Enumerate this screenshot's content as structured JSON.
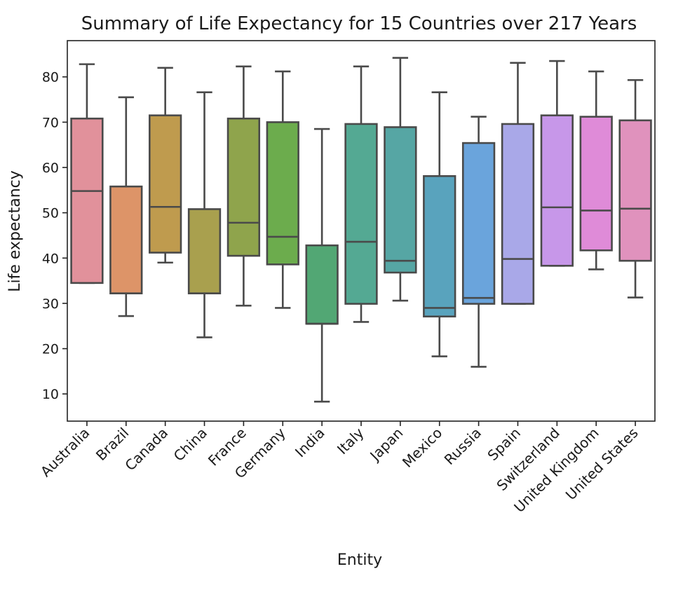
{
  "chart_data": {
    "type": "box",
    "title": "Summary of Life Expectancy for 15 Countries over 217 Years",
    "xlabel": "Entity",
    "ylabel": "Life expectancy",
    "ylim": [
      4,
      88
    ],
    "yticks": [
      10,
      20,
      30,
      40,
      50,
      60,
      70,
      80
    ],
    "grid": false,
    "legend": "none",
    "line_color": "#4a4a4a",
    "categories": [
      "Australia",
      "Brazil",
      "Canada",
      "China",
      "France",
      "Germany",
      "India",
      "Italy",
      "Japan",
      "Mexico",
      "Russia",
      "Spain",
      "Switzerland",
      "United Kingdom",
      "United States"
    ],
    "boxes": [
      {
        "name": "Australia",
        "min": 34.5,
        "q1": 34.5,
        "median": 54.8,
        "q3": 70.8,
        "max": 82.8,
        "color": "#e1919b"
      },
      {
        "name": "Brazil",
        "min": 27.2,
        "q1": 32.2,
        "median": 32.2,
        "q3": 55.8,
        "max": 75.5,
        "color": "#dd9468"
      },
      {
        "name": "Canada",
        "min": 39.0,
        "q1": 41.2,
        "median": 51.3,
        "q3": 71.5,
        "max": 82.0,
        "color": "#bf9b4e"
      },
      {
        "name": "China",
        "min": 22.5,
        "q1": 32.2,
        "median": 32.2,
        "q3": 50.8,
        "max": 76.6,
        "color": "#a9a04e"
      },
      {
        "name": "France",
        "min": 29.5,
        "q1": 40.5,
        "median": 47.8,
        "q3": 70.8,
        "max": 82.3,
        "color": "#8fa44c"
      },
      {
        "name": "Germany",
        "min": 29.0,
        "q1": 38.6,
        "median": 44.7,
        "q3": 70.0,
        "max": 81.2,
        "color": "#6cac4d"
      },
      {
        "name": "India",
        "min": 8.3,
        "q1": 25.5,
        "median": 25.5,
        "q3": 42.8,
        "max": 68.5,
        "color": "#52a774"
      },
      {
        "name": "Italy",
        "min": 25.9,
        "q1": 29.9,
        "median": 43.6,
        "q3": 69.6,
        "max": 82.3,
        "color": "#54a993"
      },
      {
        "name": "Japan",
        "min": 30.6,
        "q1": 36.8,
        "median": 39.4,
        "q3": 68.9,
        "max": 84.2,
        "color": "#56a6a4"
      },
      {
        "name": "Mexico",
        "min": 18.3,
        "q1": 27.1,
        "median": 29.0,
        "q3": 58.1,
        "max": 76.6,
        "color": "#59a3bd"
      },
      {
        "name": "Russia",
        "min": 16.0,
        "q1": 29.9,
        "median": 31.2,
        "q3": 65.4,
        "max": 71.2,
        "color": "#6aa4dc"
      },
      {
        "name": "Spain",
        "min": 29.9,
        "q1": 29.9,
        "median": 39.8,
        "q3": 69.6,
        "max": 83.1,
        "color": "#a9a8e8"
      },
      {
        "name": "Switzerland",
        "min": 38.3,
        "q1": 38.3,
        "median": 51.2,
        "q3": 71.5,
        "max": 83.5,
        "color": "#c797e9"
      },
      {
        "name": "United Kingdom",
        "min": 37.5,
        "q1": 41.7,
        "median": 50.5,
        "q3": 71.2,
        "max": 81.2,
        "color": "#df8bd8"
      },
      {
        "name": "United States",
        "min": 31.3,
        "q1": 39.4,
        "median": 50.9,
        "q3": 70.4,
        "max": 79.3,
        "color": "#e092bd"
      }
    ]
  }
}
